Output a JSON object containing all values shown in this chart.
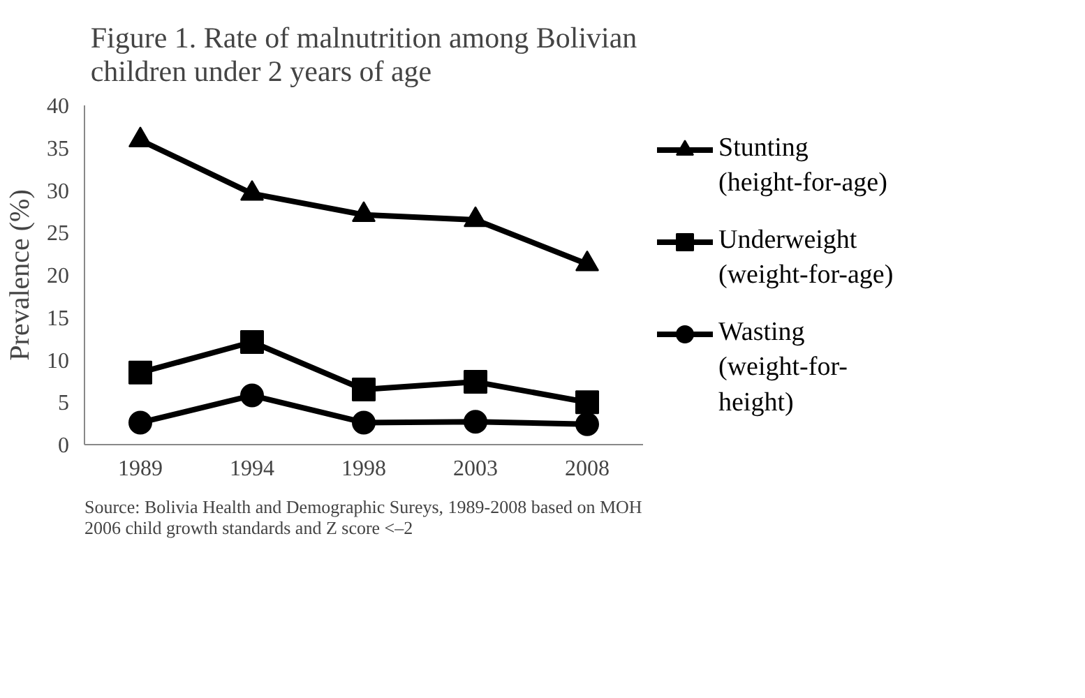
{
  "chart_data": {
    "type": "line",
    "title": "Figure 1. Rate of malnutrition among Bolivian children under 2 years of age",
    "ylabel": "Prevalence (%)",
    "categories": [
      "1989",
      "1994",
      "1998",
      "2003",
      "2008"
    ],
    "series": [
      {
        "name": "Stunting (height-for-age)",
        "color": "#000000",
        "marker": "triangle",
        "values": [
          35.9,
          29.6,
          27.1,
          26.5,
          21.3
        ]
      },
      {
        "name": "Underweight (weight-for-age)",
        "color": "#000000",
        "marker": "square",
        "values": [
          8.5,
          12.1,
          6.5,
          7.4,
          5.0
        ]
      },
      {
        "name": "Wasting (weight-for-height)",
        "color": "#000000",
        "marker": "circle",
        "values": [
          2.6,
          5.8,
          2.6,
          2.7,
          2.4
        ]
      }
    ],
    "ylim": [
      0,
      40
    ],
    "yticks": [
      0,
      5,
      10,
      15,
      20,
      25,
      30,
      35,
      40
    ],
    "grid": false,
    "legend": "right",
    "line_style": "solid",
    "annotations": [
      "Source: Bolivia Health and Demographic Sureys, 1989-2008 based on MOH 2006 child growth standards and Z score <–2"
    ]
  }
}
